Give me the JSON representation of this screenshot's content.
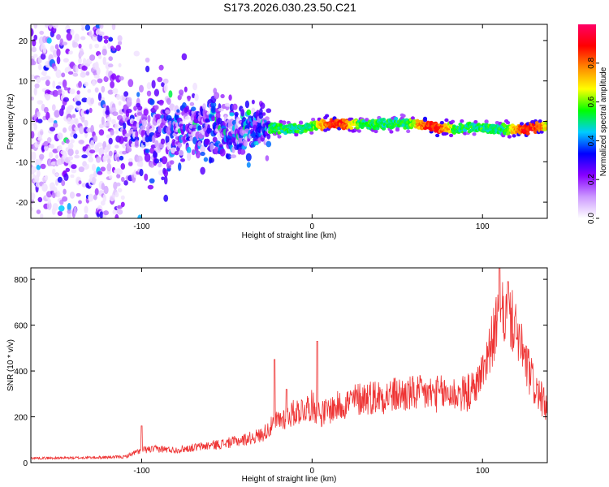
{
  "figure_title": "S173.2026.030.23.50.C21",
  "chart_data": [
    {
      "type": "heatmap",
      "title": "",
      "xlabel": "Height of straight line (km)",
      "ylabel": "Frequency (Hz)",
      "xlim": [
        -165,
        138
      ],
      "ylim": [
        -24,
        24
      ],
      "xticks": [
        -100,
        0,
        100
      ],
      "yticks": [
        -20,
        -10,
        0,
        10,
        20
      ],
      "colorbar": {
        "label": "Normalized spectral amplitude",
        "range": [
          0,
          1
        ],
        "ticks": [
          0.0,
          0.2,
          0.4,
          0.6,
          0.8
        ],
        "colormap": [
          "#ffffff",
          "#cc99ff",
          "#8800ff",
          "#0000ff",
          "#00ccff",
          "#00ff00",
          "#ffff00",
          "#ff8800",
          "#ff0000",
          "#ff0066"
        ]
      },
      "description_of_field": [
        {
          "x_range": [
            -165,
            -110
          ],
          "freq_spread_hz": 24,
          "amplitude": 0.1
        },
        {
          "x_range": [
            -110,
            -25
          ],
          "freq_spread_hz": 9,
          "amplitude": 0.2
        },
        {
          "x_range": [
            -25,
            138
          ],
          "freq_spread_hz": 1.5,
          "amplitude": 0.6
        }
      ]
    },
    {
      "type": "line",
      "title": "",
      "xlabel": "Height of straight line (km)",
      "ylabel": "SNR (10 * v/v)",
      "xlim": [
        -165,
        138
      ],
      "ylim": [
        0,
        850
      ],
      "xticks": [
        -100,
        0,
        100
      ],
      "yticks": [
        0,
        200,
        400,
        600,
        800
      ],
      "color": "#ee3333",
      "series": [
        {
          "x": [
            -165,
            -150,
            -130,
            -110,
            -100,
            -90,
            -80,
            -70,
            -60,
            -50,
            -40,
            -30,
            -25,
            -20,
            -15,
            -10,
            -5,
            0,
            5,
            10,
            20,
            30,
            40,
            50,
            60,
            70,
            80,
            90,
            95,
            100,
            105,
            110,
            115,
            120,
            125,
            130,
            138
          ],
          "values": [
            20,
            20,
            22,
            25,
            55,
            60,
            55,
            65,
            75,
            85,
            100,
            120,
            150,
            185,
            200,
            220,
            235,
            250,
            210,
            230,
            260,
            285,
            290,
            295,
            300,
            300,
            300,
            300,
            320,
            400,
            520,
            640,
            650,
            580,
            440,
            340,
            230
          ],
          "peaks": [
            {
              "x": -100,
              "value": 160
            },
            {
              "x": -22,
              "value": 450
            },
            {
              "x": -15,
              "value": 320
            },
            {
              "x": 3,
              "value": 530
            },
            {
              "x": 110,
              "value": 850
            },
            {
              "x": 115,
              "value": 790
            }
          ]
        }
      ]
    }
  ]
}
